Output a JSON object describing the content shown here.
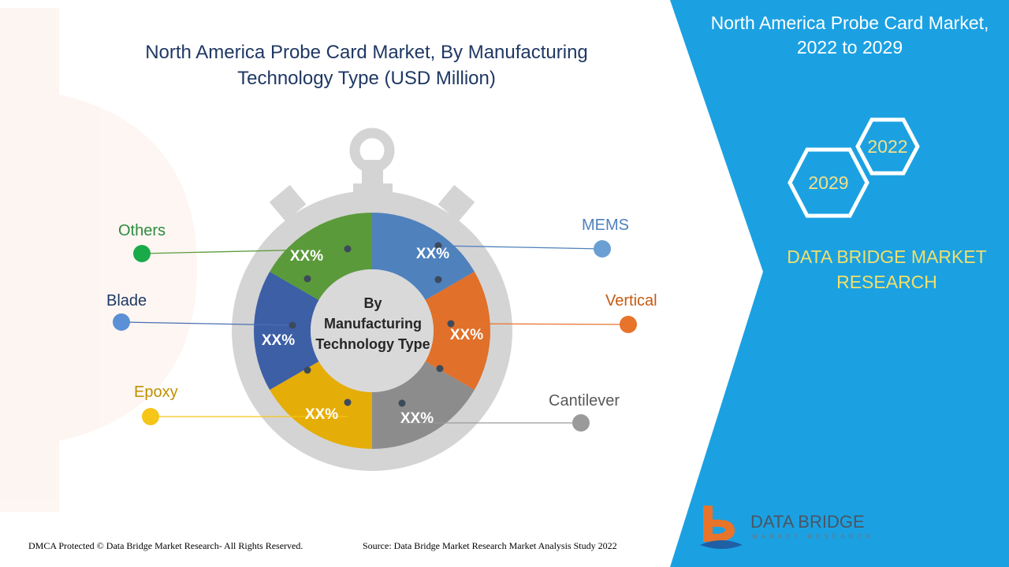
{
  "chart_data": {
    "type": "pie",
    "title": "North America Probe Card Market, By Manufacturing Technology Type (USD Million)",
    "center_label": "By Manufacturing Technology Type",
    "segments": [
      {
        "name": "MEMS",
        "label": "XX%",
        "color": "#4f81bd"
      },
      {
        "name": "Vertical",
        "label": "XX%",
        "color": "#e0702a"
      },
      {
        "name": "Cantilever",
        "label": "XX%",
        "color": "#8c8c8c"
      },
      {
        "name": "Epoxy",
        "label": "XX%",
        "color": "#e5ad08"
      },
      {
        "name": "Blade",
        "label": "XX%",
        "color": "#3d5fa6"
      },
      {
        "name": "Others",
        "label": "XX%",
        "color": "#5b9a3b"
      }
    ],
    "legend_colors": {
      "MEMS": "#6a9fd4",
      "Vertical": "#e8732a",
      "Cantilever": "#9a9a9a",
      "Epoxy": "#f5c518",
      "Blade": "#5b8fd6",
      "Others": "#1aaa4a"
    },
    "legend_text_colors": {
      "MEMS": "#4f81bd",
      "Vertical": "#c55a11",
      "Cantilever": "#595959",
      "Epoxy": "#bf9000",
      "Blade": "#1f3864",
      "Others": "#2e8b3e"
    }
  },
  "panel": {
    "title_line1": "North America Probe Card Market,",
    "title_line2": "2022 to 2029",
    "hex_a": "2022",
    "hex_b": "2029",
    "brand_line1": "DATA BRIDGE MARKET",
    "brand_line2": "RESEARCH",
    "accent": "#1ba1e2"
  },
  "footer": {
    "left": "DMCA Protected © Data Bridge Market Research- All Rights Reserved.",
    "right": "Source: Data Bridge Market Research Market Analysis Study 2022"
  },
  "logo": {
    "name": "DATA BRIDGE",
    "sub": "MARKET RESEARCH"
  }
}
